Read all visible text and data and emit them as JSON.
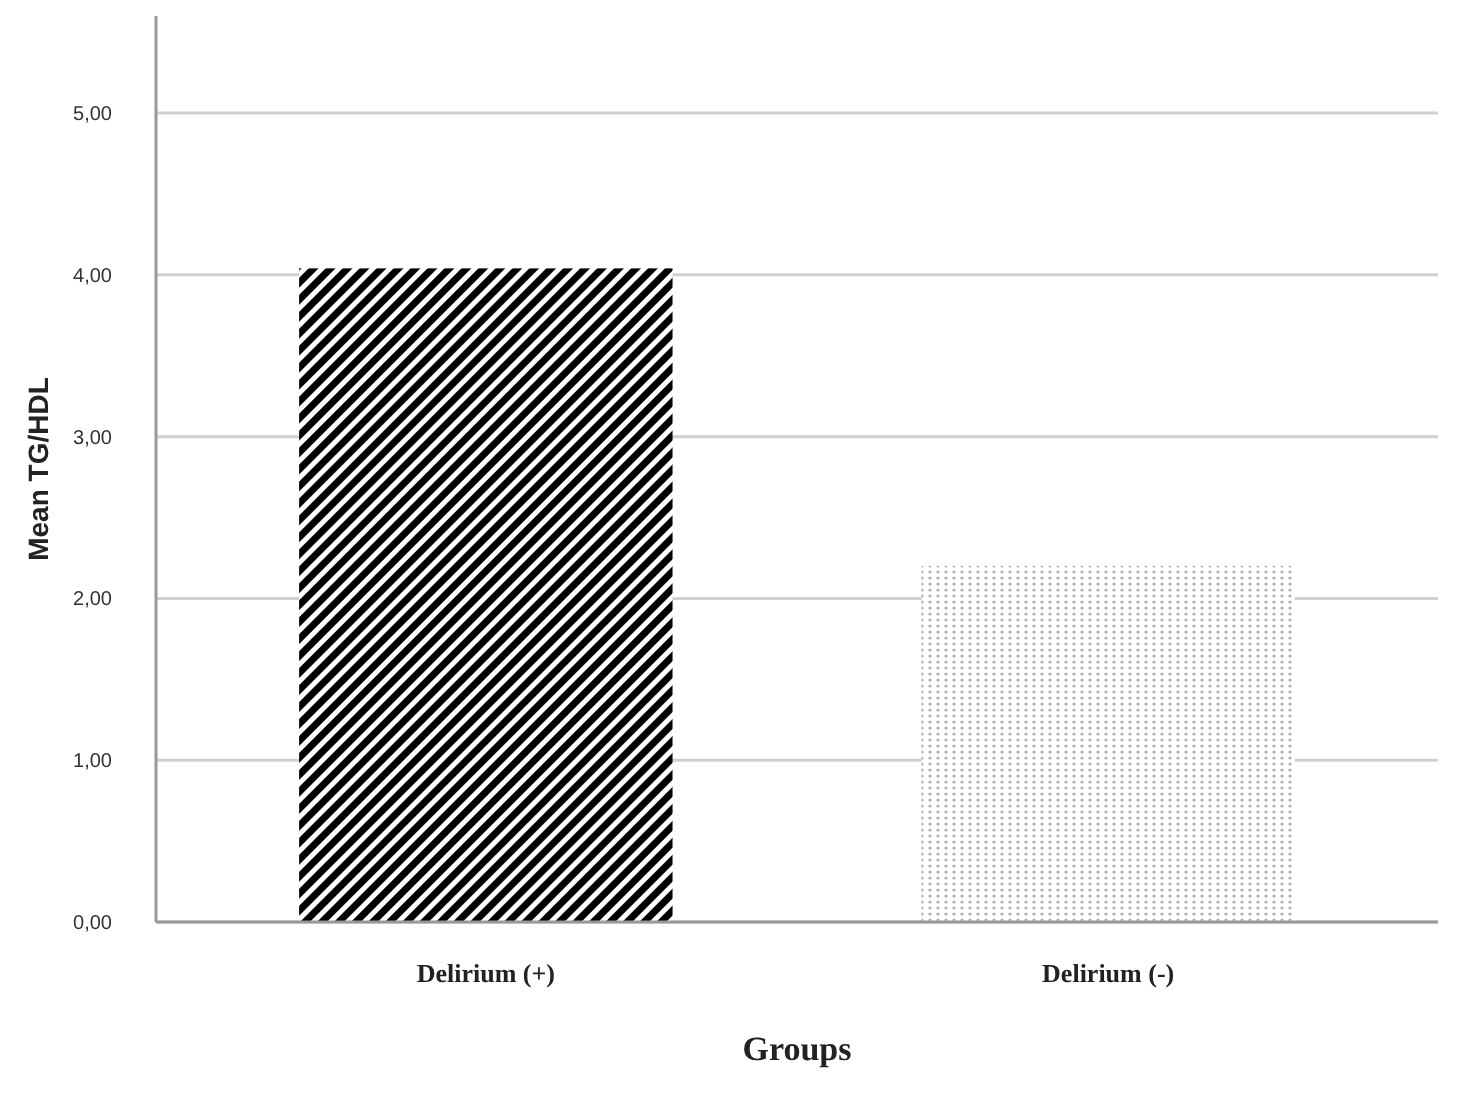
{
  "chart_data": {
    "type": "bar",
    "xlabel": "Groups",
    "ylabel": "Mean TG/HDL",
    "categories": [
      "Delirium (+)",
      "Delirium (-)"
    ],
    "values": [
      4.04,
      2.2
    ],
    "colors": [
      "#000000",
      "#b0b0b0"
    ],
    "ylim": [
      0,
      5.6
    ],
    "yticks": [
      {
        "value": 0,
        "label": "0,00"
      },
      {
        "value": 1,
        "label": "1,00"
      },
      {
        "value": 2,
        "label": "2,00"
      },
      {
        "value": 3,
        "label": "3,00"
      },
      {
        "value": 4,
        "label": "4,00"
      },
      {
        "value": 5,
        "label": "5,00"
      }
    ],
    "grid": "y"
  }
}
